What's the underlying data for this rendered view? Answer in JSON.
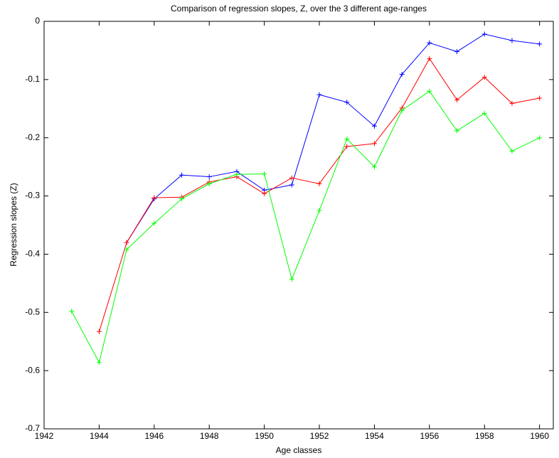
{
  "chart_data": {
    "type": "line",
    "title": "Comparison of regression slopes, Z, over the 3 different age-ranges",
    "x_label": "Age classes",
    "y_label": "Regression slopes (Z)",
    "x": [
      1943,
      1944,
      1945,
      1946,
      1947,
      1948,
      1949,
      1950,
      1951,
      1952,
      1953,
      1954,
      1955,
      1956,
      1957,
      1958,
      1959,
      1960
    ],
    "series": [
      {
        "color": "#0000ff",
        "values": [
          null,
          null,
          -0.38,
          -0.305,
          -0.264,
          -0.267,
          -0.258,
          -0.29,
          -0.281,
          -0.126,
          -0.139,
          -0.18,
          -0.091,
          -0.037,
          -0.052,
          -0.022,
          -0.033,
          -0.039
        ]
      },
      {
        "color": "#ff0000",
        "values": [
          null,
          -0.533,
          -0.38,
          -0.303,
          -0.302,
          -0.276,
          -0.267,
          -0.296,
          -0.269,
          -0.279,
          -0.215,
          -0.21,
          -0.149,
          -0.064,
          -0.135,
          -0.096,
          -0.141,
          -0.132
        ]
      },
      {
        "color": "#00ff00",
        "values": [
          -0.498,
          -0.586,
          -0.392,
          -0.347,
          -0.305,
          -0.279,
          -0.263,
          -0.262,
          -0.443,
          -0.325,
          -0.202,
          -0.25,
          -0.153,
          -0.12,
          -0.188,
          -0.158,
          -0.223,
          -0.2
        ]
      }
    ],
    "xlim": [
      1942,
      1960.5
    ],
    "xticks": [
      1942,
      1944,
      1946,
      1948,
      1950,
      1952,
      1954,
      1956,
      1958,
      1960
    ],
    "ylim": [
      -0.7,
      0
    ],
    "yticks": [
      -0.7,
      -0.6,
      -0.5,
      -0.4,
      -0.3,
      -0.2,
      -0.1,
      0
    ],
    "marker": "+"
  }
}
